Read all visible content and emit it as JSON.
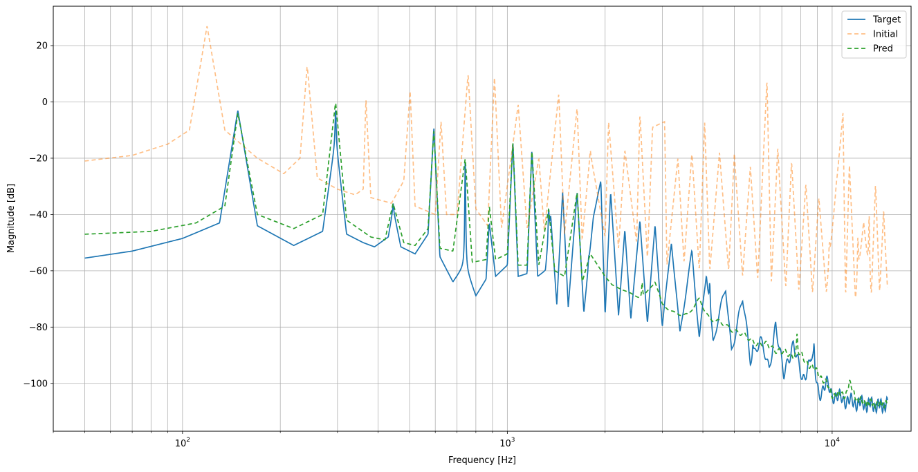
{
  "chart_data": {
    "type": "line",
    "title": "",
    "xlabel": "Frequency [Hz]",
    "ylabel": "Magnitude [dB]",
    "xscale": "log",
    "xlim": [
      40,
      17500
    ],
    "ylim": [
      -117,
      34
    ],
    "grid": true,
    "legend_position": "top-right",
    "x_ticks": [
      {
        "value": 100,
        "base": "10",
        "exp": "2"
      },
      {
        "value": 1000,
        "base": "10",
        "exp": "3"
      },
      {
        "value": 10000,
        "base": "10",
        "exp": "4"
      }
    ],
    "y_ticks": [
      {
        "value": 20,
        "label": "20"
      },
      {
        "value": 0,
        "label": "0"
      },
      {
        "value": -20,
        "label": "−20"
      },
      {
        "value": -40,
        "label": "−40"
      },
      {
        "value": -60,
        "label": "−60"
      },
      {
        "value": -80,
        "label": "−80"
      },
      {
        "value": -100,
        "label": "−100"
      }
    ],
    "series": [
      {
        "name": "Target",
        "color": "#1f77b4",
        "dash": "solid",
        "opacity": 1,
        "base_points": [
          [
            50,
            -55.5
          ],
          [
            70,
            -53
          ],
          [
            100,
            -48.5
          ],
          [
            130,
            -43
          ],
          [
            148,
            -3
          ],
          [
            170,
            -44
          ],
          [
            220,
            -51
          ],
          [
            270,
            -46
          ],
          [
            296,
            -13
          ],
          [
            320,
            -47
          ],
          [
            360,
            -50
          ],
          [
            390,
            -51.5
          ],
          [
            430,
            -48
          ],
          [
            445,
            -38
          ],
          [
            470,
            -51.5
          ],
          [
            520,
            -54
          ],
          [
            570,
            -47
          ],
          [
            594,
            -9
          ],
          [
            620,
            -55
          ],
          [
            680,
            -64
          ],
          [
            740,
            -58
          ],
          [
            800,
            -69
          ],
          [
            860,
            -63
          ],
          [
            880,
            -43
          ],
          [
            920,
            -62
          ],
          [
            1000,
            -58
          ],
          [
            1040,
            -14
          ],
          [
            1080,
            -62
          ],
          [
            1150,
            -61
          ],
          [
            1190,
            -17
          ],
          [
            1240,
            -62
          ],
          [
            1310,
            -60
          ],
          [
            1360,
            -41
          ],
          [
            1420,
            -72
          ],
          [
            1480,
            -32
          ],
          [
            1540,
            -73
          ],
          [
            1640,
            -32
          ],
          [
            1720,
            -75
          ],
          [
            1840,
            -41
          ],
          [
            1940,
            -28
          ],
          [
            2000,
            -76
          ],
          [
            2080,
            -32
          ],
          [
            2200,
            -76
          ],
          [
            2300,
            -45
          ],
          [
            2400,
            -77
          ],
          [
            2560,
            -42
          ],
          [
            2700,
            -79
          ],
          [
            2850,
            -44
          ],
          [
            3000,
            -80
          ],
          [
            3200,
            -49
          ],
          [
            3400,
            -82
          ],
          [
            3700,
            -54
          ],
          [
            3900,
            -84
          ],
          [
            4100,
            -60
          ],
          [
            4300,
            -86
          ],
          [
            4700,
            -66
          ],
          [
            4900,
            -88
          ],
          [
            5300,
            -70
          ],
          [
            5600,
            -92
          ],
          [
            6000,
            -84
          ],
          [
            6400,
            -96
          ],
          [
            6700,
            -78
          ],
          [
            7100,
            -98
          ],
          [
            7600,
            -85
          ],
          [
            8100,
            -100
          ],
          [
            8600,
            -90
          ],
          [
            9100,
            -104
          ],
          [
            9600,
            -100
          ],
          [
            10000,
            -104
          ],
          [
            11000,
            -106
          ],
          [
            12000,
            -107
          ],
          [
            13000,
            -107.5
          ],
          [
            14000,
            -108
          ],
          [
            14800,
            -107.5
          ]
        ],
        "resonances": [
          [
            148,
            -3
          ],
          [
            296,
            -2
          ],
          [
            445,
            -36
          ],
          [
            594,
            -9
          ],
          [
            742,
            -20
          ],
          [
            880,
            -43
          ],
          [
            1040,
            -14
          ],
          [
            1190,
            -17
          ],
          [
            1340,
            -38
          ],
          [
            1480,
            -32
          ],
          [
            1640,
            -32
          ],
          [
            1780,
            -55
          ],
          [
            1940,
            -28
          ],
          [
            2080,
            -32
          ],
          [
            2300,
            -48
          ],
          [
            2560,
            -42
          ],
          [
            2850,
            -44
          ],
          [
            3200,
            -50
          ],
          [
            3700,
            -56
          ],
          [
            4200,
            -64
          ],
          [
            4700,
            -68
          ],
          [
            5300,
            -72
          ],
          [
            5700,
            -86
          ],
          [
            6700,
            -79
          ],
          [
            7500,
            -87
          ],
          [
            8800,
            -88
          ],
          [
            9600,
            -100
          ]
        ],
        "jitter": 3
      },
      {
        "name": "Initial",
        "color": "#ff7f0e",
        "dash": "6,4",
        "opacity": 0.5,
        "base_points": [
          [
            50,
            -21
          ],
          [
            70,
            -19
          ],
          [
            90,
            -15
          ],
          [
            105,
            -10
          ],
          [
            119,
            27
          ],
          [
            135,
            -10
          ],
          [
            170,
            -20
          ],
          [
            205,
            -25.5
          ],
          [
            230,
            -20
          ],
          [
            242,
            13
          ],
          [
            260,
            -27
          ],
          [
            300,
            -31
          ],
          [
            340,
            -33
          ],
          [
            360,
            -31
          ],
          [
            367,
            1
          ],
          [
            380,
            -34
          ],
          [
            440,
            -36
          ],
          [
            480,
            -28
          ],
          [
            502,
            4
          ],
          [
            520,
            -37
          ],
          [
            600,
            -40
          ],
          [
            625,
            -7
          ],
          [
            650,
            -40
          ],
          [
            700,
            -40
          ],
          [
            757,
            10
          ],
          [
            800,
            -38
          ],
          [
            870,
            -44
          ],
          [
            913,
            9
          ],
          [
            960,
            -45
          ],
          [
            1080,
            -1
          ],
          [
            1150,
            -45
          ],
          [
            1250,
            -20
          ],
          [
            1300,
            -46
          ],
          [
            1440,
            3
          ],
          [
            1500,
            -47
          ],
          [
            1640,
            -2
          ],
          [
            1700,
            -49
          ],
          [
            1800,
            -18
          ],
          [
            2000,
            -48
          ],
          [
            2050,
            -7
          ],
          [
            2200,
            -52
          ],
          [
            2300,
            -17
          ],
          [
            2500,
            -50
          ],
          [
            2560,
            -4
          ],
          [
            2700,
            -56
          ],
          [
            2800,
            -9
          ],
          [
            3050,
            -7
          ],
          [
            3100,
            -58
          ],
          [
            3350,
            -20
          ],
          [
            3500,
            -57
          ],
          [
            3700,
            -18
          ],
          [
            3900,
            -60
          ],
          [
            4050,
            -7
          ],
          [
            4200,
            -60
          ],
          [
            4500,
            -18
          ],
          [
            4800,
            -60
          ],
          [
            5000,
            -19
          ],
          [
            5300,
            -62
          ],
          [
            5600,
            -23
          ],
          [
            5900,
            -63
          ],
          [
            6300,
            8
          ],
          [
            6500,
            -64
          ],
          [
            6800,
            -17
          ],
          [
            7200,
            -66
          ],
          [
            7500,
            -21
          ],
          [
            7900,
            -67
          ],
          [
            8300,
            -29
          ],
          [
            8700,
            -68
          ],
          [
            9100,
            -34
          ],
          [
            9600,
            -68
          ],
          [
            10300,
            -30
          ],
          [
            10800,
            -4
          ],
          [
            11000,
            -70
          ],
          [
            11300,
            -22
          ],
          [
            11800,
            -71
          ],
          [
            12500,
            -43
          ],
          [
            13200,
            -70
          ],
          [
            13600,
            -29
          ],
          [
            14000,
            -68
          ],
          [
            14400,
            -40
          ],
          [
            14800,
            -66
          ]
        ],
        "resonances": [
          [
            119,
            27
          ],
          [
            242,
            13
          ],
          [
            367,
            1
          ],
          [
            502,
            4
          ],
          [
            625,
            -7
          ],
          [
            757,
            10
          ],
          [
            913,
            9
          ],
          [
            1080,
            -1
          ],
          [
            1250,
            -20
          ],
          [
            1440,
            3
          ],
          [
            1640,
            -2
          ],
          [
            1800,
            -17
          ],
          [
            2050,
            -7
          ],
          [
            2300,
            -17
          ],
          [
            2560,
            -4
          ],
          [
            2800,
            -9
          ],
          [
            3050,
            -7
          ],
          [
            3350,
            -20
          ],
          [
            3700,
            -18
          ],
          [
            4050,
            -7
          ],
          [
            4500,
            -18
          ],
          [
            5000,
            -18
          ],
          [
            5600,
            -23
          ],
          [
            6300,
            8
          ],
          [
            6800,
            -16
          ],
          [
            7500,
            -21
          ],
          [
            8300,
            -29
          ],
          [
            9100,
            -34
          ],
          [
            9800,
            -50
          ],
          [
            10300,
            -29
          ],
          [
            10800,
            -4
          ],
          [
            11300,
            -22
          ],
          [
            12000,
            -48
          ],
          [
            12500,
            -43
          ],
          [
            13000,
            -40
          ],
          [
            13600,
            -29
          ],
          [
            14400,
            -38
          ]
        ],
        "jitter": 0
      },
      {
        "name": "Pred",
        "color": "#2ca02c",
        "dash": "6,4",
        "opacity": 1,
        "base_points": [
          [
            50,
            -47
          ],
          [
            80,
            -46
          ],
          [
            110,
            -43
          ],
          [
            135,
            -37
          ],
          [
            148,
            -4
          ],
          [
            170,
            -40
          ],
          [
            220,
            -45
          ],
          [
            270,
            -40
          ],
          [
            296,
            0
          ],
          [
            320,
            -42
          ],
          [
            380,
            -48
          ],
          [
            420,
            -49
          ],
          [
            445,
            -36
          ],
          [
            480,
            -50
          ],
          [
            520,
            -51
          ],
          [
            570,
            -45
          ],
          [
            594,
            -10
          ],
          [
            620,
            -52
          ],
          [
            680,
            -53
          ],
          [
            742,
            -20
          ],
          [
            780,
            -57
          ],
          [
            860,
            -56
          ],
          [
            880,
            -37
          ],
          [
            920,
            -56
          ],
          [
            1000,
            -54
          ],
          [
            1040,
            -14
          ],
          [
            1080,
            -58
          ],
          [
            1150,
            -58
          ],
          [
            1190,
            -17
          ],
          [
            1250,
            -58
          ],
          [
            1340,
            -38
          ],
          [
            1400,
            -60
          ],
          [
            1500,
            -62
          ],
          [
            1640,
            -32
          ],
          [
            1700,
            -64
          ],
          [
            1800,
            -54
          ],
          [
            2000,
            -62
          ],
          [
            2100,
            -65
          ],
          [
            2400,
            -68
          ],
          [
            2600,
            -70
          ],
          [
            2850,
            -64
          ],
          [
            3000,
            -72
          ],
          [
            3300,
            -75
          ],
          [
            3600,
            -76
          ],
          [
            3900,
            -70
          ],
          [
            4200,
            -77
          ],
          [
            4600,
            -79
          ],
          [
            5000,
            -81
          ],
          [
            5500,
            -84
          ],
          [
            6000,
            -86
          ],
          [
            6500,
            -87
          ],
          [
            7000,
            -89
          ],
          [
            7600,
            -90
          ],
          [
            8000,
            -90
          ],
          [
            8600,
            -94
          ],
          [
            9000,
            -96
          ],
          [
            9600,
            -100
          ],
          [
            10000,
            -104
          ],
          [
            11000,
            -104
          ],
          [
            11300,
            -100
          ],
          [
            12000,
            -106
          ],
          [
            13000,
            -107
          ],
          [
            14000,
            -107.5
          ],
          [
            14800,
            -107
          ]
        ],
        "resonances": [
          [
            148,
            -4
          ],
          [
            296,
            0
          ],
          [
            445,
            -36
          ],
          [
            594,
            -10
          ],
          [
            742,
            -20
          ],
          [
            880,
            -37
          ],
          [
            1040,
            -14
          ],
          [
            1190,
            -17
          ],
          [
            1340,
            -38
          ],
          [
            1640,
            -32
          ],
          [
            1800,
            -55
          ],
          [
            2600,
            -64
          ],
          [
            3900,
            -70
          ],
          [
            7800,
            -83
          ],
          [
            11300,
            -100
          ]
        ],
        "jitter": 1.5
      }
    ]
  }
}
